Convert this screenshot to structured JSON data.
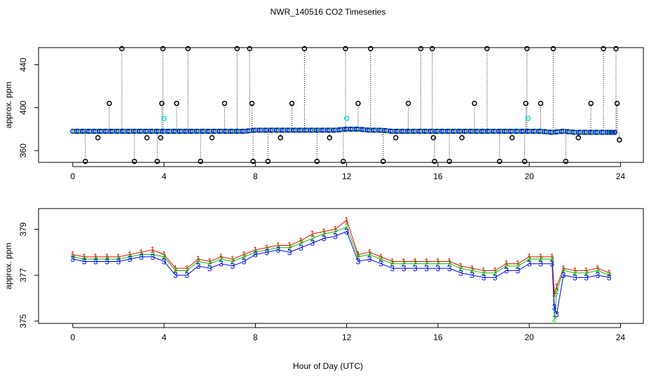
{
  "chart_data": [
    {
      "type": "scatter",
      "title": "NWR_140516  CO2 Timeseries",
      "ylabel": "approx. ppm",
      "xlabel": "",
      "xlim": [
        -1.5,
        25
      ],
      "ylim": [
        349,
        456
      ],
      "x_ticks": [
        "0",
        "4",
        "8",
        "12",
        "16",
        "20",
        "24"
      ],
      "y_ticks": [
        "360",
        "400",
        "440"
      ],
      "grid": false,
      "legend": "none",
      "colors": {
        "baseline": "#0000ff",
        "fill": "#00c000",
        "marker": "#000000",
        "highlight": "#00e0e0",
        "drop": "#000000"
      },
      "series": [
        {
          "values_x": [
            0,
            0.5,
            1,
            1.5,
            2,
            2.5,
            3,
            3.5,
            4,
            4.5,
            5,
            5.5,
            6,
            6.5,
            7,
            7.5,
            8,
            8.5,
            9,
            9.5,
            10,
            10.5,
            11,
            11.5,
            12,
            12.5,
            13,
            13.5,
            14,
            14.5,
            15,
            15.5,
            16,
            16.5,
            17,
            17.5,
            18,
            18.5,
            19,
            19.5,
            20,
            20.5,
            21,
            21.5,
            22,
            22.5,
            23,
            23.5,
            23.8
          ],
          "values_y": [
            378,
            378,
            378,
            378,
            378,
            378,
            378,
            378,
            378,
            378,
            378,
            378,
            378,
            378,
            378,
            378,
            379,
            379,
            379,
            379,
            379,
            379,
            379,
            379,
            380,
            380,
            379,
            379,
            378,
            378,
            378,
            378,
            378,
            378,
            378,
            378,
            378,
            378,
            378,
            378,
            378,
            378,
            377,
            378,
            377,
            377,
            377,
            377,
            377
          ]
        }
      ],
      "outliers": {
        "x": [
          0.55,
          1.1,
          1.6,
          2.15,
          2.7,
          3.25,
          3.7,
          3.85,
          3.9,
          3.95,
          4.55,
          5.05,
          5.6,
          6.1,
          6.65,
          7.2,
          7.75,
          7.85,
          7.9,
          8.55,
          9.1,
          9.6,
          10.15,
          10.7,
          11.25,
          11.85,
          11.95,
          12.5,
          13.05,
          13.6,
          14.15,
          14.7,
          15.25,
          15.75,
          15.8,
          15.85,
          16.5,
          17.05,
          17.6,
          18.15,
          18.7,
          19.25,
          19.8,
          19.85,
          19.9,
          20.5,
          21.05,
          21.6,
          22.15,
          22.7,
          23.25,
          23.8,
          23.85,
          23.95
        ],
        "y": [
          350,
          372,
          404,
          455,
          350,
          372,
          350,
          372,
          404,
          455,
          404,
          455,
          350,
          372,
          404,
          455,
          455,
          404,
          350,
          350,
          372,
          404,
          455,
          350,
          372,
          350,
          455,
          404,
          455,
          350,
          372,
          404,
          455,
          455,
          372,
          350,
          350,
          372,
          404,
          455,
          350,
          372,
          350,
          404,
          455,
          404,
          455,
          350,
          372,
          404,
          455,
          455,
          404,
          370
        ],
        "highlight_x": [
          4.0,
          12.0,
          19.95
        ],
        "highlight_y": [
          390,
          390,
          390
        ]
      }
    },
    {
      "type": "scatter",
      "title": "",
      "ylabel": "approx. ppm",
      "xlabel": "Hour of Day (UTC)",
      "xlim": [
        -1.5,
        25
      ],
      "ylim": [
        374.9,
        379.9
      ],
      "x_ticks": [
        "0",
        "4",
        "8",
        "12",
        "16",
        "20",
        "24"
      ],
      "y_ticks": [
        "375",
        "377",
        "379"
      ],
      "grid": false,
      "legend": "none",
      "series": [
        {
          "marker": "1",
          "color": "#ff0000",
          "values_x": [
            0,
            0.5,
            1,
            1.5,
            2,
            2.5,
            3,
            3.5,
            4,
            4.5,
            5,
            5.5,
            6,
            6.5,
            7,
            7.5,
            8,
            8.5,
            9,
            9.5,
            10,
            10.5,
            11,
            11.5,
            12,
            12.5,
            13,
            13.5,
            14,
            14.5,
            15,
            15.5,
            16,
            16.5,
            17,
            17.5,
            18,
            18.5,
            19,
            19.5,
            20,
            20.5,
            21,
            21.1,
            21.2,
            21.5,
            22,
            22.5,
            23,
            23.5
          ],
          "values_y": [
            377.9,
            377.8,
            377.8,
            377.8,
            377.8,
            377.9,
            378.0,
            378.1,
            377.9,
            377.3,
            377.3,
            377.7,
            377.6,
            377.8,
            377.7,
            377.9,
            378.1,
            378.2,
            378.3,
            378.3,
            378.5,
            378.8,
            378.9,
            379.0,
            379.4,
            377.9,
            378.0,
            377.8,
            377.6,
            377.6,
            377.6,
            377.6,
            377.6,
            377.6,
            377.4,
            377.3,
            377.2,
            377.2,
            377.5,
            377.5,
            377.8,
            377.8,
            377.8,
            376.2,
            376.5,
            377.3,
            377.2,
            377.2,
            377.3,
            377.1
          ]
        },
        {
          "marker": "2",
          "color": "#00c000",
          "values_x": [
            0,
            0.5,
            1,
            1.5,
            2,
            2.5,
            3,
            3.5,
            4,
            4.5,
            5,
            5.5,
            6,
            6.5,
            7,
            7.5,
            8,
            8.5,
            9,
            9.5,
            10,
            10.5,
            11,
            11.5,
            12,
            12.5,
            13,
            13.5,
            14,
            14.5,
            15,
            15.5,
            16,
            16.5,
            17,
            17.5,
            18,
            18.5,
            19,
            19.5,
            20,
            20.5,
            21,
            21.1,
            21.2,
            21.5,
            22,
            22.5,
            23,
            23.5
          ],
          "values_y": [
            377.8,
            377.7,
            377.7,
            377.7,
            377.7,
            377.8,
            377.9,
            377.9,
            377.8,
            377.2,
            377.2,
            377.6,
            377.5,
            377.7,
            377.6,
            377.8,
            378.0,
            378.1,
            378.2,
            378.2,
            378.4,
            378.6,
            378.8,
            378.9,
            379.1,
            377.8,
            377.9,
            377.7,
            377.5,
            377.5,
            377.5,
            377.5,
            377.5,
            377.5,
            377.3,
            377.2,
            377.1,
            377.1,
            377.4,
            377.4,
            377.7,
            377.7,
            377.7,
            375.1,
            376.3,
            377.2,
            377.1,
            377.1,
            377.2,
            377.0
          ]
        },
        {
          "marker": "3",
          "color": "#0000ff",
          "values_x": [
            0,
            0.5,
            1,
            1.5,
            2,
            2.5,
            3,
            3.5,
            4,
            4.5,
            5,
            5.5,
            6,
            6.5,
            7,
            7.5,
            8,
            8.5,
            9,
            9.5,
            10,
            10.5,
            11,
            11.5,
            12,
            12.5,
            13,
            13.5,
            14,
            14.5,
            15,
            15.5,
            16,
            16.5,
            17,
            17.5,
            18,
            18.5,
            19,
            19.5,
            20,
            20.5,
            21,
            21.1,
            21.2,
            21.5,
            22,
            22.5,
            23,
            23.5
          ],
          "values_y": [
            377.7,
            377.6,
            377.6,
            377.6,
            377.6,
            377.7,
            377.8,
            377.8,
            377.6,
            377.0,
            377.0,
            377.4,
            377.3,
            377.5,
            377.4,
            377.6,
            377.9,
            378.0,
            378.1,
            378.0,
            378.2,
            378.4,
            378.6,
            378.7,
            378.9,
            377.6,
            377.7,
            377.5,
            377.3,
            377.3,
            377.3,
            377.3,
            377.3,
            377.3,
            377.1,
            377.0,
            376.9,
            376.9,
            377.2,
            377.2,
            377.5,
            377.5,
            377.5,
            375.6,
            375.3,
            377.0,
            376.9,
            376.9,
            377.0,
            376.9
          ]
        }
      ]
    }
  ]
}
